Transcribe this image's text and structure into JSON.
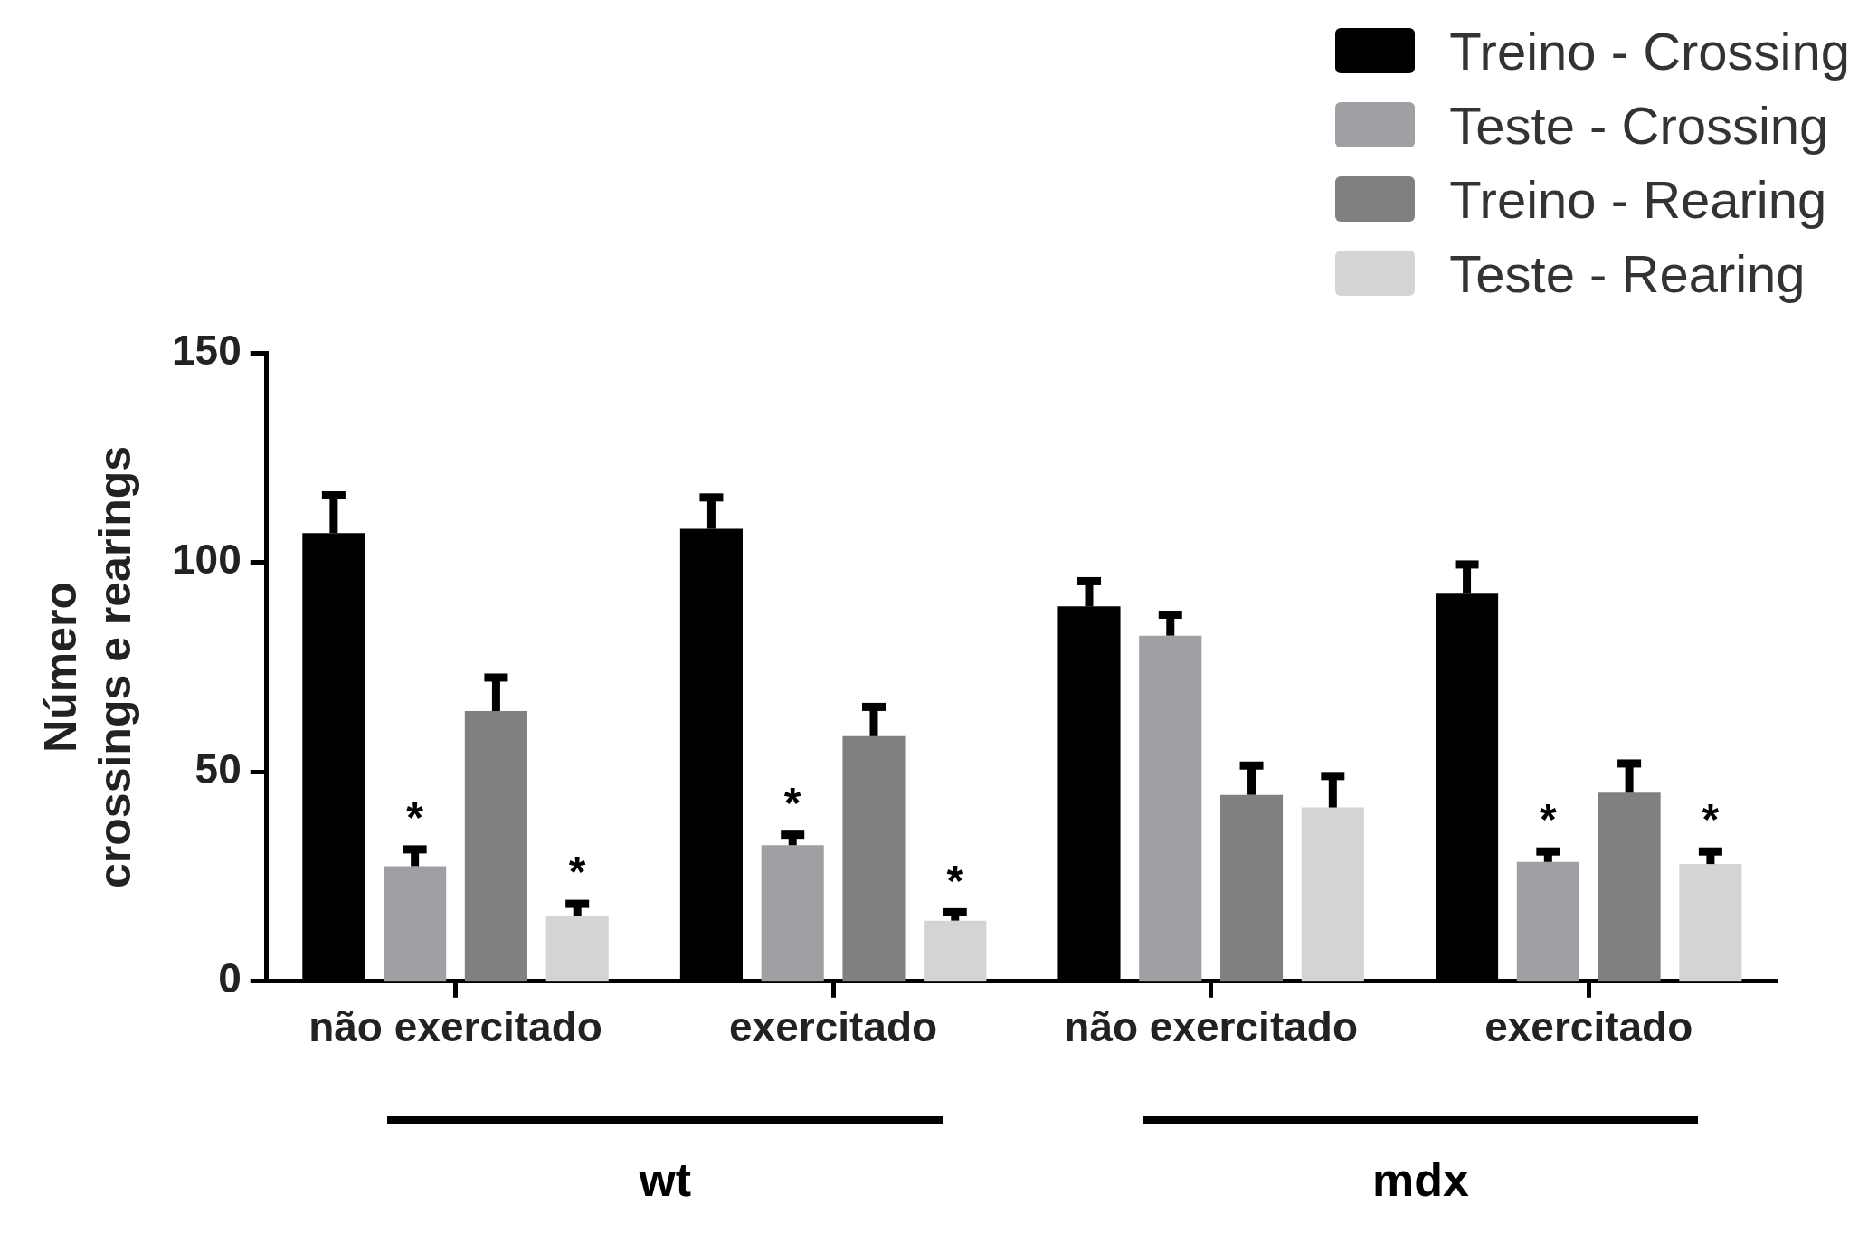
{
  "chart_data": {
    "type": "bar",
    "ylabel": "Número\ncrossings e rearings",
    "categories": [
      "não exercitado",
      "exercitado",
      "não exercitado",
      "exercitado"
    ],
    "ylim": [
      0,
      150
    ],
    "yticks": [
      0,
      50,
      100,
      150
    ],
    "grid": false,
    "legend": "top right",
    "series": [
      {
        "name": "Treino - Crossing",
        "color": "#000000",
        "values": [
          107,
          108,
          89.5,
          92.5
        ],
        "errors": [
          9,
          7.5,
          6,
          7
        ]
      },
      {
        "name": "Teste - Crossing",
        "color": "#a0a0a4",
        "values": [
          27.5,
          32.5,
          82.5,
          28.5
        ],
        "errors": [
          4,
          2.5,
          5,
          2.5
        ],
        "value_labels": [
          "*",
          "*",
          null,
          "*"
        ]
      },
      {
        "name": "Treino - Rearing",
        "color": "#808080",
        "values": [
          64.5,
          58.5,
          44.5,
          45
        ],
        "errors": [
          8,
          7,
          7,
          7
        ]
      },
      {
        "name": "Teste - Rearing",
        "color": "#d4d4d4",
        "values": [
          15.5,
          14.5,
          41.5,
          28
        ],
        "errors": [
          3,
          2,
          7.5,
          3
        ],
        "value_labels": [
          "*",
          "*",
          null,
          "*"
        ]
      }
    ],
    "annotations": [
      "wt",
      "mdx"
    ]
  }
}
